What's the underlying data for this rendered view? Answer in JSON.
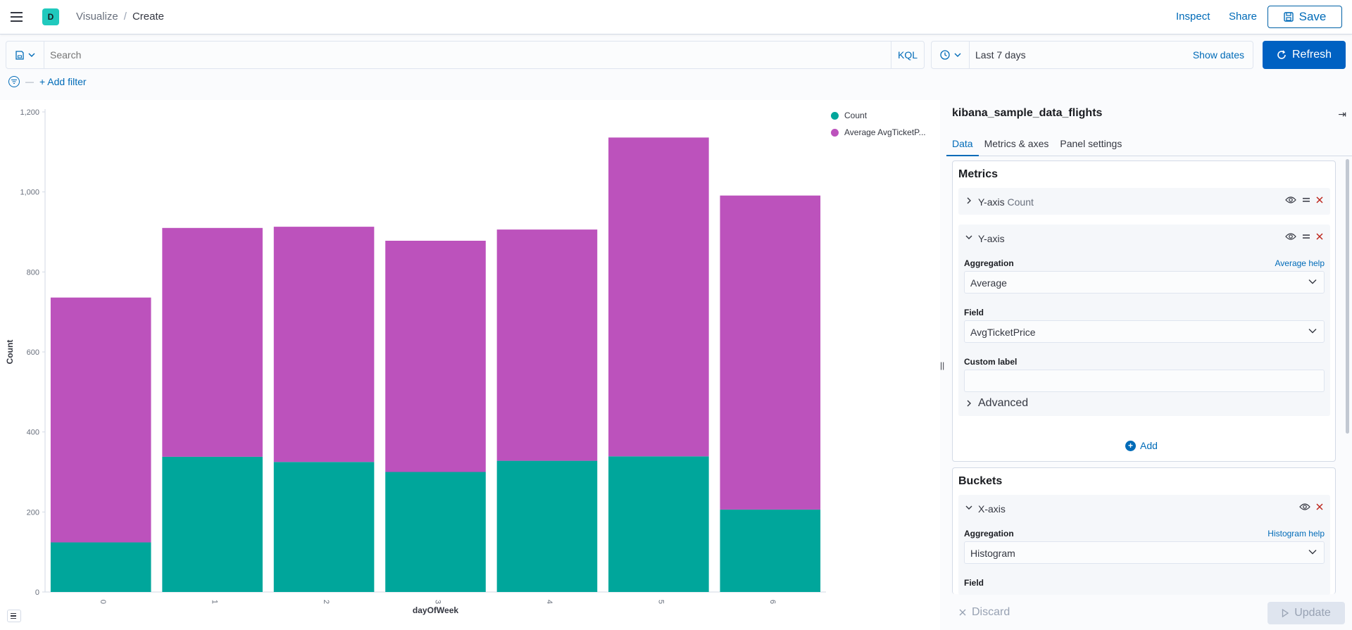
{
  "header": {
    "space_initial": "D",
    "breadcrumbs": [
      "Visualize",
      "Create"
    ],
    "breadcrumb_sep": "/",
    "inspect_label": "Inspect",
    "share_label": "Share",
    "save_label": "Save"
  },
  "query": {
    "search_placeholder": "Search",
    "language": "KQL",
    "date_range": "Last 7 days",
    "show_dates_label": "Show dates",
    "refresh_label": "Refresh"
  },
  "filters": {
    "separator": "—",
    "add_filter_label": "+ Add filter"
  },
  "chart_data": {
    "type": "bar",
    "stacked": true,
    "categories": [
      "0",
      "1",
      "2",
      "3",
      "4",
      "5",
      "6"
    ],
    "series": [
      {
        "name": "Count",
        "color": "#00a69b",
        "values": [
          124,
          338,
          325,
          300,
          328,
          339,
          206
        ]
      },
      {
        "name": "Average AvgTicketP...",
        "color": "#bc52bc",
        "values": [
          612,
          572,
          588,
          578,
          578,
          797,
          785
        ]
      }
    ],
    "xlabel": "dayOfWeek",
    "ylabel": "Count",
    "ylim": [
      0,
      1200
    ],
    "yticks": [
      "0",
      "200",
      "400",
      "600",
      "800",
      "1,000",
      "1,200"
    ],
    "legend_position": "top-right",
    "grid": false
  },
  "sidebar": {
    "index_pattern": "kibana_sample_data_flights",
    "tabs": [
      {
        "label": "Data",
        "active": true
      },
      {
        "label": "Metrics & axes",
        "active": false
      },
      {
        "label": "Panel settings",
        "active": false
      }
    ],
    "metrics": {
      "title": "Metrics",
      "items": [
        {
          "label": "Y-axis",
          "sublabel": "Count",
          "expanded": false
        },
        {
          "label": "Y-axis",
          "sublabel": "",
          "expanded": true
        }
      ],
      "aggregation_label": "Aggregation",
      "aggregation_help": "Average help",
      "aggregation_value": "Average",
      "field_label": "Field",
      "field_value": "AvgTicketPrice",
      "custom_label": "Custom label",
      "custom_value": "",
      "advanced_label": "Advanced",
      "add_label": "Add"
    },
    "buckets": {
      "title": "Buckets",
      "item_label": "X-axis",
      "aggregation_label": "Aggregation",
      "aggregation_help": "Histogram help",
      "aggregation_value": "Histogram",
      "field_label": "Field"
    },
    "discard_label": "Discard",
    "update_label": "Update"
  }
}
